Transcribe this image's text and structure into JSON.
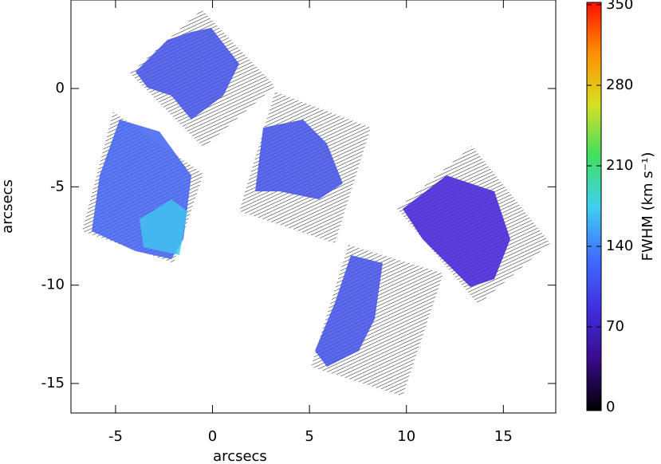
{
  "chart_data": {
    "type": "map",
    "xlabel": "arcsecs",
    "ylabel": "arcsecs",
    "xlim": [
      -7.3,
      17.7
    ],
    "ylim": [
      -16.5,
      4.5
    ],
    "xticks": [
      -5,
      0,
      5,
      10,
      15
    ],
    "yticks": [
      0,
      -5,
      -10,
      -15
    ],
    "colorbar": {
      "label": "FWHM (km s⁻¹)",
      "clim": [
        0,
        350
      ],
      "ticks": [
        0,
        70,
        140,
        210,
        280,
        350
      ],
      "colors": [
        "#000000",
        "#3a0a8a",
        "#3f2fe0",
        "#3f6fff",
        "#3fd0f0",
        "#3fe060",
        "#d8e020",
        "#ff9000",
        "#ff1000"
      ]
    }
  }
}
